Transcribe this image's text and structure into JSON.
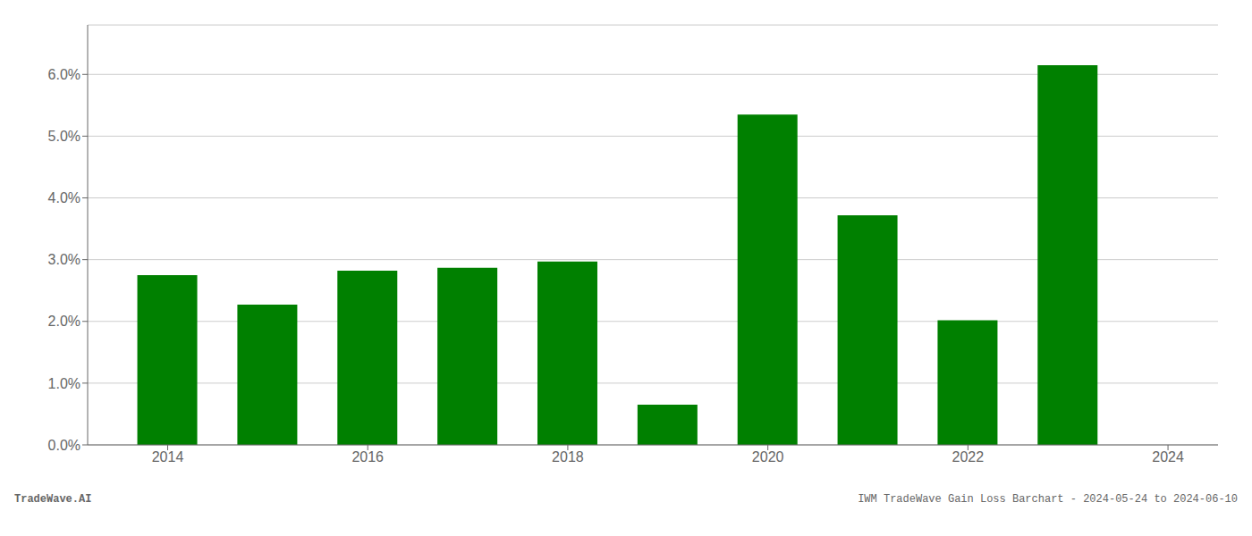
{
  "chart_data": {
    "type": "bar",
    "x": [
      2014,
      2015,
      2016,
      2017,
      2018,
      2019,
      2020,
      2021,
      2022,
      2023
    ],
    "values": [
      0.0275,
      0.0227,
      0.0282,
      0.0287,
      0.0297,
      0.0065,
      0.0535,
      0.0372,
      0.0202,
      0.0615
    ],
    "color": "#008000",
    "xlim": [
      2013.2,
      2024.5
    ],
    "xticks": [
      2014,
      2016,
      2018,
      2020,
      2022,
      2024
    ],
    "ylim": [
      0,
      0.068
    ],
    "yticks": [
      {
        "value": 0.0,
        "label": "0.0%"
      },
      {
        "value": 0.01,
        "label": "1.0%"
      },
      {
        "value": 0.02,
        "label": "2.0%"
      },
      {
        "value": 0.03,
        "label": "3.0%"
      },
      {
        "value": 0.04,
        "label": "4.0%"
      },
      {
        "value": 0.05,
        "label": "5.0%"
      },
      {
        "value": 0.06,
        "label": "6.0%"
      }
    ],
    "grid": true,
    "annotations": [
      "TradeWave.AI",
      "IWM TradeWave Gain Loss Barchart - 2024-05-24 to 2024-06-10"
    ]
  }
}
